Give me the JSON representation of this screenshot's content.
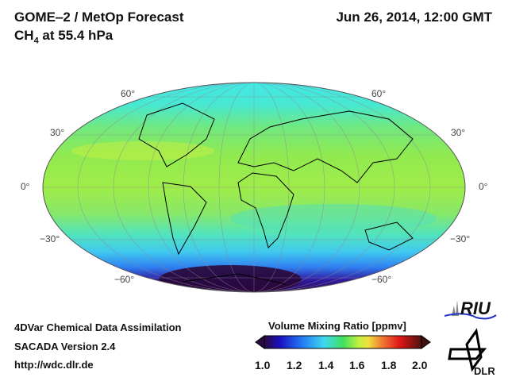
{
  "header": {
    "title": "GOME‒2 / MetOp Forecast",
    "subtitle_species": "CH",
    "subtitle_subscript": "4",
    "subtitle_rest": " at 55.4 hPa",
    "datetime": "Jun 26, 2014, 12:00 GMT"
  },
  "map": {
    "projection": "Mollweide",
    "lat_labels_left": [
      "60°",
      "30°",
      "0°",
      "−30°",
      "−60°"
    ],
    "lat_labels_right": [
      "60°",
      "30°",
      "0°",
      "−30°",
      "−60°"
    ]
  },
  "footer": {
    "line1": "4DVar Chemical Data Assimilation",
    "line2": "SACADA Version 2.4",
    "line3": "http://wdc.dlr.de"
  },
  "colorbar": {
    "title": "Volume Mixing Ratio [ppmv]",
    "ticks": [
      "1.0",
      "1.2",
      "1.4",
      "1.6",
      "1.8",
      "2.0"
    ],
    "range": [
      1.0,
      2.0
    ],
    "colors": [
      "#2a0a40",
      "#1a10c0",
      "#1f6cf0",
      "#3fd8f0",
      "#40e060",
      "#c0f040",
      "#f0e040",
      "#f07030",
      "#e01818",
      "#601010"
    ]
  },
  "logos": {
    "riu": "RIU",
    "dlr": "DLR"
  }
}
